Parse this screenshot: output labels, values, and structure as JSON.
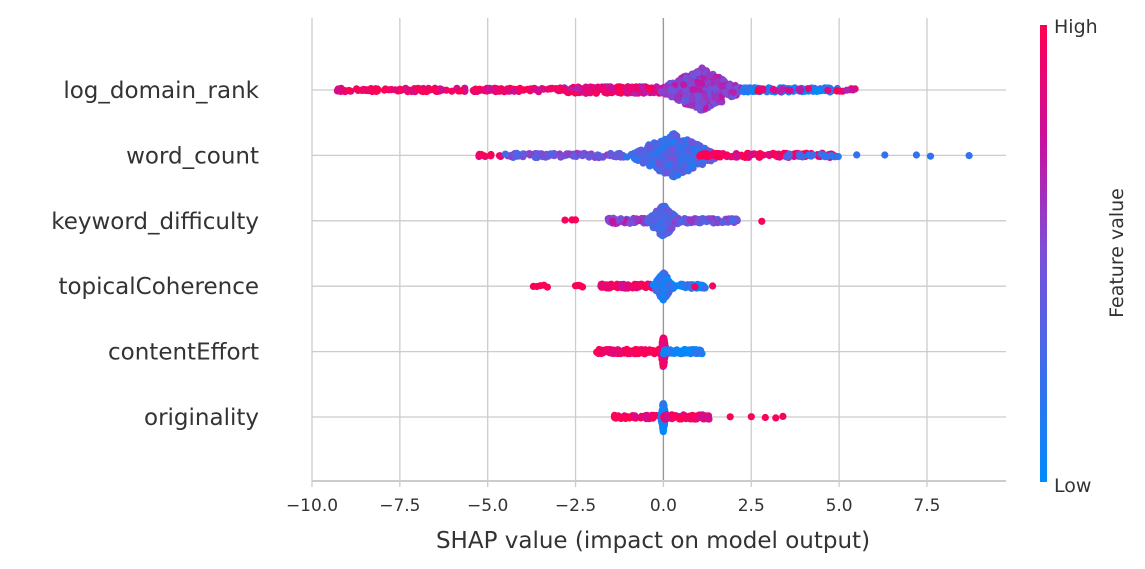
{
  "chart_data": {
    "type": "scatter",
    "subtype": "shap-beeswarm",
    "xlabel": "SHAP value (impact on model output)",
    "xlim": [
      -10.0,
      9.75
    ],
    "xticks": [
      -10.0,
      -7.5,
      -5.0,
      -2.5,
      0.0,
      2.5,
      5.0,
      7.5
    ],
    "xtick_labels": [
      "−10.0",
      "−7.5",
      "−5.0",
      "−2.5",
      "0.0",
      "2.5",
      "5.0",
      "7.5"
    ],
    "grid": true,
    "colorbar": {
      "label": "Feature value",
      "high_label": "High",
      "low_label": "Low",
      "low_color": "#008bfb",
      "mid_color": "#7a4fd8",
      "high_color": "#ff0052"
    },
    "features": [
      {
        "name": "log_domain_rank",
        "clusters": [
          {
            "from": -9.3,
            "to": -3.0,
            "n": 160,
            "fv": 0.92,
            "spread": 0.08
          },
          {
            "from": -3.0,
            "to": 0.0,
            "n": 160,
            "fv": 0.85,
            "spread": 0.15
          },
          {
            "from": -0.2,
            "to": 2.4,
            "n": 420,
            "fv": 0.55,
            "spread": 1.0,
            "peak": 1.1
          },
          {
            "from": 2.2,
            "to": 5.0,
            "n": 90,
            "fv": 0.12,
            "spread": 0.1
          },
          {
            "from": 2.5,
            "to": 5.7,
            "n": 25,
            "fv": 0.85,
            "spread": 0.05
          }
        ]
      },
      {
        "name": "word_count",
        "clusters": [
          {
            "from": -5.3,
            "to": -4.6,
            "n": 14,
            "fv": 0.95,
            "spread": 0.03
          },
          {
            "from": -4.5,
            "to": -1.0,
            "n": 90,
            "fv": 0.45,
            "spread": 0.1
          },
          {
            "from": -1.2,
            "to": 1.6,
            "n": 420,
            "fv": 0.3,
            "spread": 1.0,
            "peak": 0.3
          },
          {
            "from": 1.0,
            "to": 5.0,
            "n": 120,
            "fv": 0.9,
            "spread": 0.1
          },
          {
            "from": 3.5,
            "to": 5.0,
            "n": 20,
            "fv": 0.25,
            "spread": 0.05
          },
          {
            "points": [
              5.5,
              6.3,
              7.2,
              7.6,
              8.7
            ],
            "fv": 0.2
          }
        ]
      },
      {
        "name": "keyword_difficulty",
        "clusters": [
          {
            "points": [
              -2.8,
              -2.6,
              -2.5
            ],
            "fv": 0.97
          },
          {
            "from": -1.6,
            "to": -0.3,
            "n": 60,
            "fv": 0.6,
            "spread": 0.12
          },
          {
            "from": -0.5,
            "to": 0.5,
            "n": 220,
            "fv": 0.35,
            "spread": 0.75,
            "peak": 0.0
          },
          {
            "from": 0.3,
            "to": 2.2,
            "n": 80,
            "fv": 0.45,
            "spread": 0.1
          },
          {
            "points": [
              2.8
            ],
            "fv": 0.95
          }
        ]
      },
      {
        "name": "topicalCoherence",
        "clusters": [
          {
            "points": [
              -3.7,
              -3.6,
              -3.5,
              -3.4,
              -3.3
            ],
            "fv": 0.98
          },
          {
            "points": [
              -2.5,
              -2.45,
              -2.4,
              -2.35,
              -2.3
            ],
            "fv": 0.98
          },
          {
            "from": -1.8,
            "to": 0.0,
            "n": 120,
            "fv": 0.93,
            "spread": 0.1
          },
          {
            "from": -0.3,
            "to": 0.3,
            "n": 180,
            "fv": 0.12,
            "spread": 0.65,
            "peak": 0.0
          },
          {
            "from": 0.0,
            "to": 1.2,
            "n": 60,
            "fv": 0.1,
            "spread": 0.1
          },
          {
            "points": [
              0.9,
              1.4
            ],
            "fv": 0.95
          }
        ]
      },
      {
        "name": "contentEffort",
        "clusters": [
          {
            "from": -1.9,
            "to": 0.0,
            "n": 120,
            "fv": 0.97,
            "spread": 0.1
          },
          {
            "from": -0.08,
            "to": 0.08,
            "n": 120,
            "fv": 0.95,
            "spread": 0.75,
            "peak": 0.0
          },
          {
            "from": 0.0,
            "to": 1.1,
            "n": 90,
            "fv": 0.05,
            "spread": 0.1
          }
        ]
      },
      {
        "name": "originality",
        "clusters": [
          {
            "from": -1.4,
            "to": 0.0,
            "n": 50,
            "fv": 0.97,
            "spread": 0.08
          },
          {
            "from": -0.08,
            "to": 0.08,
            "n": 120,
            "fv": 0.05,
            "spread": 0.7,
            "peak": 0.0
          },
          {
            "from": 0.0,
            "to": 1.3,
            "n": 80,
            "fv": 0.95,
            "spread": 0.1
          },
          {
            "points": [
              1.9,
              2.5,
              2.9,
              3.2,
              3.4
            ],
            "fv": 0.97
          }
        ]
      }
    ]
  }
}
